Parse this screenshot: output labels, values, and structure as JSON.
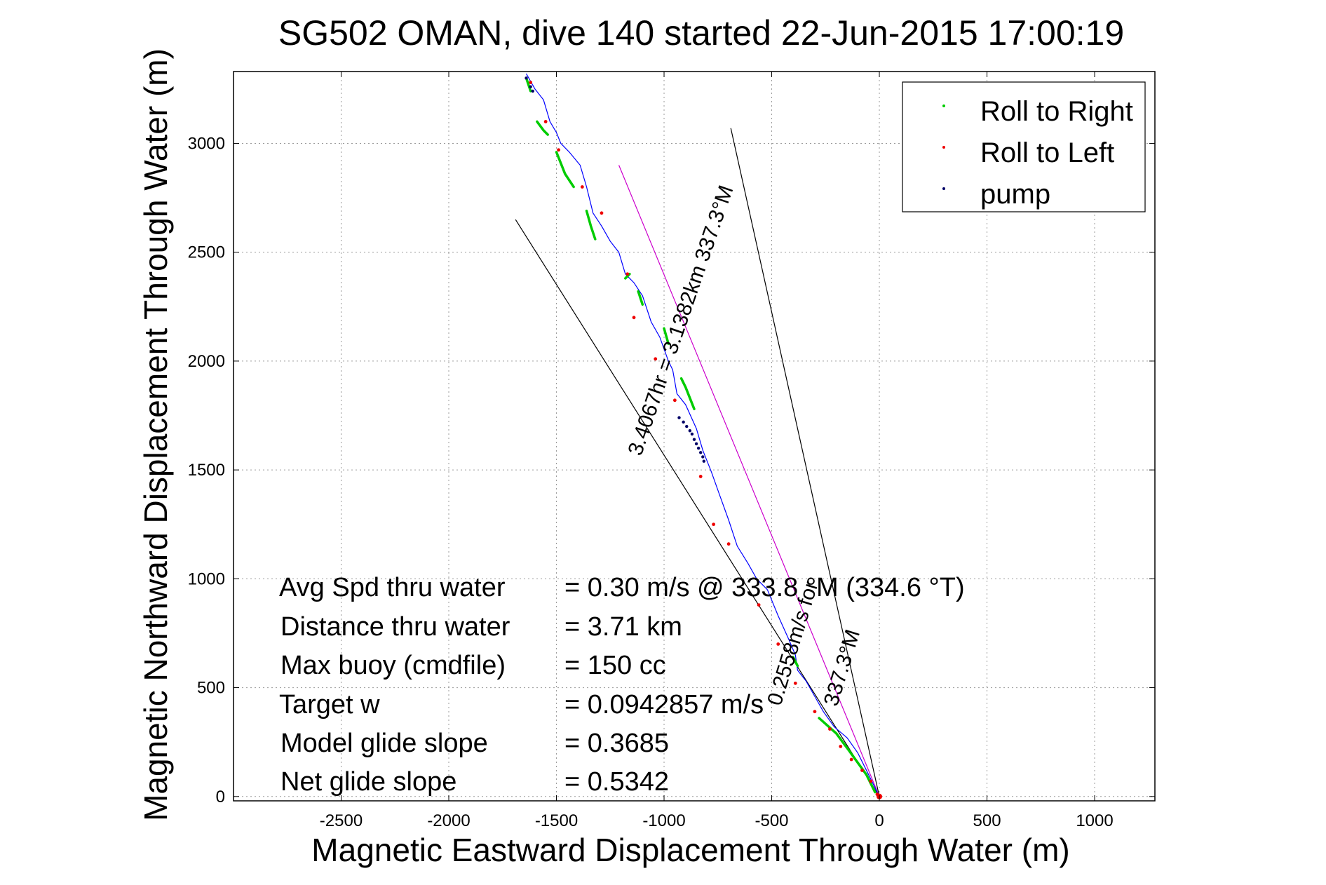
{
  "chart_data": {
    "type": "line",
    "title": "SG502 OMAN, dive 140 started 22-Jun-2015 17:00:19",
    "xlabel": "Magnetic Eastward Displacement Through Water (m)",
    "ylabel": "Magnetic Northward Displacement Through Water (m)",
    "xlim": [
      -3000,
      1280
    ],
    "ylim": [
      -20,
      3330
    ],
    "xticks": [
      -2500,
      -2000,
      -1500,
      -1000,
      -500,
      0,
      500,
      1000
    ],
    "yticks": [
      0,
      500,
      1000,
      1500,
      2000,
      2500,
      3000
    ],
    "grid": true,
    "legend_position": "top-right",
    "legend": [
      {
        "name": "Roll to Right",
        "color": "#00cc00"
      },
      {
        "name": "Roll to Left",
        "color": "#ee0000"
      },
      {
        "name": "pump",
        "color": "#000066"
      }
    ],
    "track": {
      "color": "#0000ff",
      "x": [
        0,
        -50,
        -100,
        -150,
        -210,
        -260,
        -300,
        -340,
        -380,
        -390,
        -420,
        -470,
        -520,
        -570,
        -610,
        -660,
        -700,
        -740,
        -780,
        -820,
        -850,
        -900,
        -940,
        -960,
        -980,
        -1020,
        -1060,
        -1100,
        -1140,
        -1180,
        -1210,
        -1250,
        -1290,
        -1330,
        -1360,
        -1390,
        -1440,
        -1480,
        -1500,
        -1530,
        -1560,
        -1600,
        -1640
      ],
      "y": [
        0,
        100,
        200,
        270,
        320,
        390,
        460,
        530,
        580,
        650,
        720,
        830,
        950,
        1000,
        1070,
        1150,
        1270,
        1380,
        1490,
        1590,
        1690,
        1800,
        1850,
        1960,
        2000,
        2110,
        2180,
        2300,
        2360,
        2400,
        2500,
        2550,
        2620,
        2680,
        2800,
        2900,
        2960,
        3000,
        3050,
        3100,
        3200,
        3250,
        3320
      ]
    },
    "roll_right": [
      {
        "x": [
          -20,
          -60,
          -140,
          -200,
          -280
        ],
        "y": [
          20,
          100,
          210,
          290,
          360
        ]
      },
      {
        "x": [
          -380,
          -400
        ],
        "y": [
          600,
          640
        ]
      },
      {
        "x": [
          -860,
          -900,
          -920
        ],
        "y": [
          1780,
          1880,
          1920
        ]
      },
      {
        "x": [
          -980,
          -1000
        ],
        "y": [
          2080,
          2150
        ]
      },
      {
        "x": [
          -1100,
          -1120
        ],
        "y": [
          2260,
          2320
        ]
      },
      {
        "x": [
          -1160,
          -1180
        ],
        "y": [
          2400,
          2380
        ]
      },
      {
        "x": [
          -1320,
          -1340,
          -1360
        ],
        "y": [
          2560,
          2620,
          2690
        ]
      },
      {
        "x": [
          -1420,
          -1460,
          -1500
        ],
        "y": [
          2800,
          2860,
          2960
        ]
      },
      {
        "x": [
          -1540,
          -1560,
          -1590
        ],
        "y": [
          3040,
          3060,
          3100
        ]
      },
      {
        "x": [
          -1620,
          -1640
        ],
        "y": [
          3240,
          3300
        ]
      }
    ],
    "roll_left_x": [
      -10,
      -40,
      -80,
      -130,
      -180,
      -230,
      -300,
      -390,
      -470,
      -560,
      -700,
      -770,
      -830,
      -950,
      -1040,
      -1140,
      -1170,
      -1290,
      -1380,
      -1490,
      -1550,
      -1620
    ],
    "roll_left_y": [
      10,
      70,
      120,
      170,
      230,
      310,
      390,
      520,
      700,
      880,
      1160,
      1250,
      1470,
      1820,
      2010,
      2200,
      2400,
      2680,
      2800,
      2970,
      3100,
      3280
    ],
    "pump_x": [
      -930,
      -910,
      -895,
      -880,
      -870,
      -860,
      -850,
      -840,
      -830,
      -820,
      -815,
      -1610,
      -1620,
      -1640
    ],
    "pump_y": [
      1740,
      1720,
      1700,
      1680,
      1665,
      1640,
      1620,
      1600,
      1580,
      1560,
      1540,
      3240,
      3260,
      3300
    ],
    "reference_lines": [
      {
        "name": "left-bound",
        "color": "#000000",
        "x": [
          0,
          -1690
        ],
        "y": [
          0,
          2650
        ]
      },
      {
        "name": "right-bound",
        "color": "#000000",
        "x": [
          0,
          -690
        ],
        "y": [
          0,
          3070
        ]
      },
      {
        "name": "mean-heading",
        "color": "#cc00cc",
        "x": [
          0,
          -1210
        ],
        "y": [
          0,
          2900
        ]
      }
    ],
    "annotations": {
      "total_label": "3.4067hr = 3.1382km 337.3°M",
      "rate_label": "0.2558m/s for 3.4067hr = 3.1382km",
      "heading_top": "337.3°M",
      "rate_low": "0.2558m/s for",
      "heading_low": "337.3°M"
    },
    "info": [
      {
        "label": "Avg Spd thru water",
        "value": "=  0.30 m/s @  333.8 °M (334.6 °T)"
      },
      {
        "label": "Distance thru water",
        "value": "=  3.71 km"
      },
      {
        "label": "Max buoy (cmdfile)",
        "value": "= 150 cc"
      },
      {
        "label": "Target w",
        "value": "= 0.0942857 m/s"
      },
      {
        "label": "Model glide slope",
        "value": "= 0.3685"
      },
      {
        "label": "Net glide slope",
        "value": "= 0.5342"
      }
    ]
  }
}
